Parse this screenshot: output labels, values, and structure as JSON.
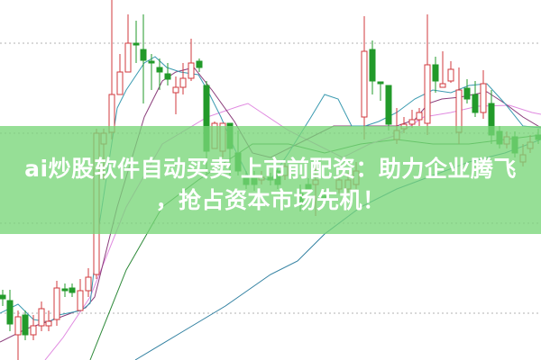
{
  "headline": {
    "line1": "ai炒股软件自动买卖 上市前配资：助力企业腾飞",
    "line2": "，抢占资本市场先机！"
  },
  "colors": {
    "up_candle": "#d0393e",
    "down_candle": "#229a2a",
    "banner": "#78d678",
    "ma_fast": "#3a9ab0",
    "ma_mid": "#8a3c7a",
    "ma_slow": "#e08ae0",
    "ma_long": "#2f8a3a",
    "ma_longest": "#2f7fa0",
    "grid": "#b0b0b0"
  },
  "chart": {
    "type": "candlestick",
    "grid": "horizontal-dotted",
    "axes_labels": "none"
  }
}
